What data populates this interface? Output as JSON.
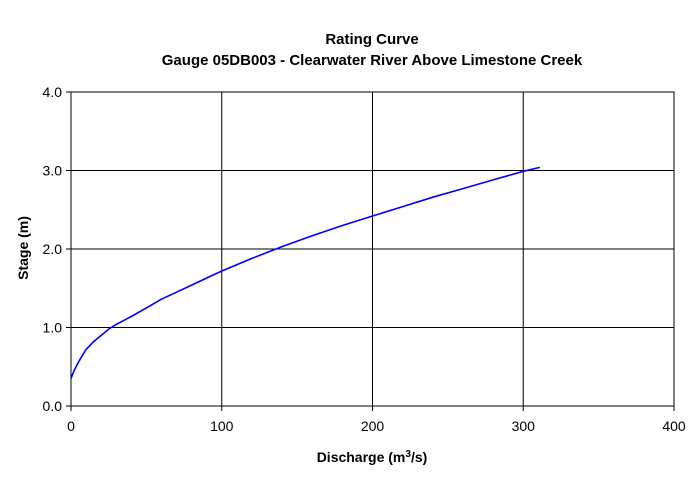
{
  "chart_data": {
    "type": "line",
    "title": "Rating Curve",
    "subtitle": "Gauge 05DB003 - Clearwater River Above Limestone Creek",
    "xlabel_prefix": "Discharge (m",
    "xlabel_sup": "3",
    "xlabel_suffix": "/s)",
    "ylabel": "Stage (m)",
    "xlim": [
      0,
      400
    ],
    "ylim": [
      0,
      4
    ],
    "xticks": [
      "0",
      "100",
      "200",
      "300",
      "400"
    ],
    "yticks": [
      "0.0",
      "1.0",
      "2.0",
      "3.0",
      "4.0"
    ],
    "grid": true,
    "legend": "none",
    "colors": {
      "line": "#0000ff",
      "grid": "#000000"
    },
    "series": [
      {
        "x": [
          0,
          2,
          5,
          8,
          10,
          15,
          20,
          25,
          30,
          40,
          50,
          60,
          70,
          80,
          90,
          100,
          120,
          140,
          160,
          180,
          200,
          220,
          240,
          260,
          280,
          300,
          311
        ],
        "y": [
          0.35,
          0.45,
          0.56,
          0.66,
          0.72,
          0.82,
          0.9,
          0.98,
          1.04,
          1.14,
          1.25,
          1.36,
          1.45,
          1.54,
          1.63,
          1.72,
          1.88,
          2.03,
          2.17,
          2.3,
          2.42,
          2.54,
          2.66,
          2.77,
          2.88,
          2.99,
          3.04
        ]
      }
    ]
  }
}
